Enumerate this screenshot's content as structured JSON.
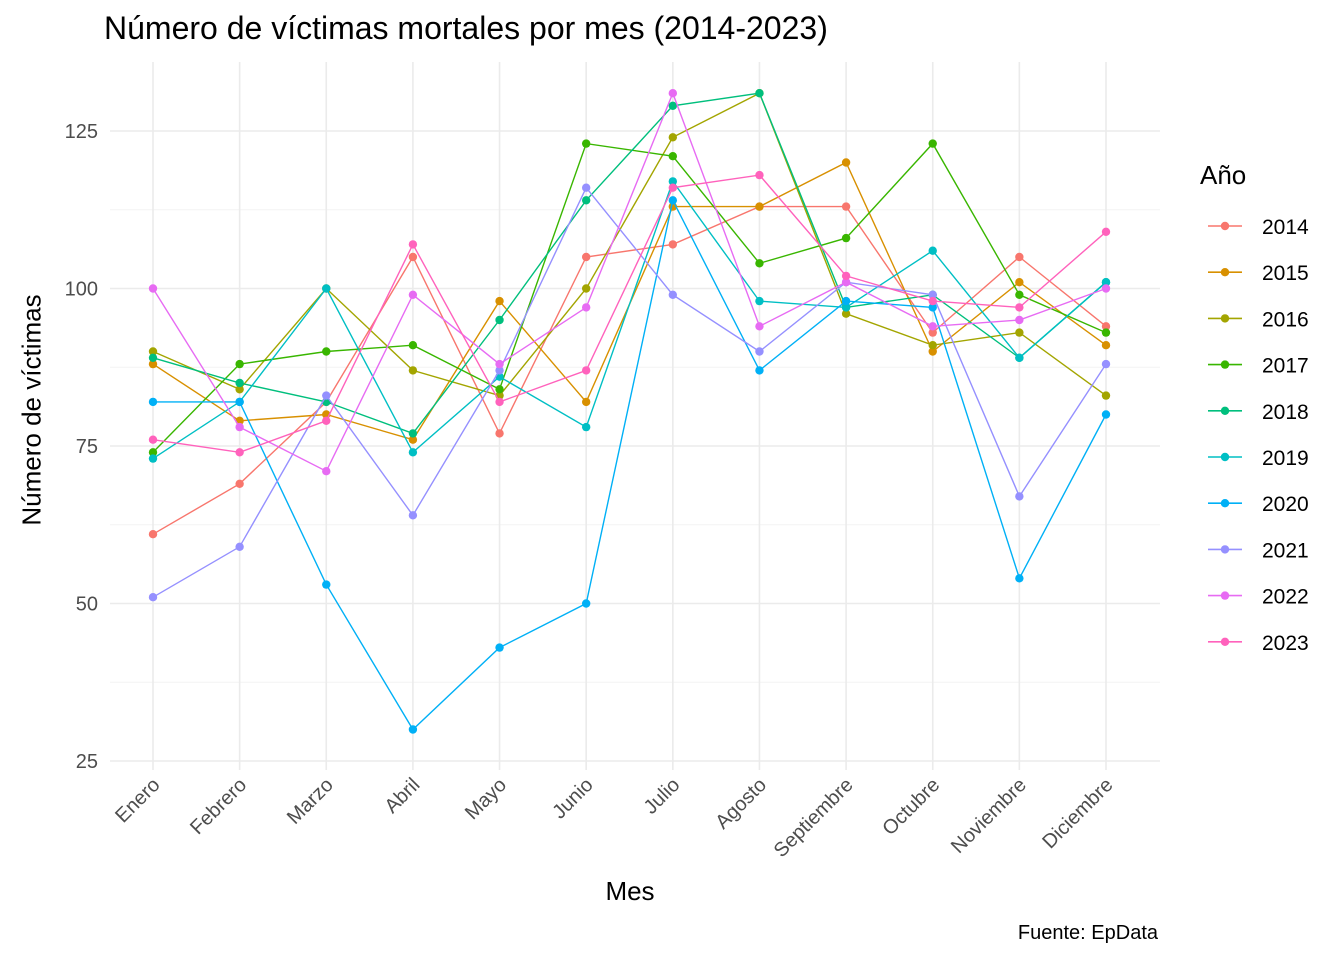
{
  "chart_data": {
    "type": "line",
    "title": "Número de víctimas mortales por mes (2014-2023)",
    "xlabel": "Mes",
    "ylabel": "Número de víctimas",
    "caption": "Fuente: EpData",
    "legend_title": "Año",
    "legend_position": "right",
    "grid": true,
    "ylim": [
      25,
      135
    ],
    "y_ticks": [
      25,
      50,
      75,
      100,
      125
    ],
    "categories": [
      "Enero",
      "Febrero",
      "Marzo",
      "Abril",
      "Mayo",
      "Junio",
      "Julio",
      "Agosto",
      "Septiembre",
      "Octubre",
      "Noviembre",
      "Diciembre"
    ],
    "series": [
      {
        "name": "2014",
        "color": "#F8766D",
        "values": [
          61,
          69,
          82,
          105,
          77,
          105,
          107,
          113,
          113,
          93,
          105,
          94
        ]
      },
      {
        "name": "2015",
        "color": "#D89000",
        "values": [
          88,
          79,
          80,
          76,
          98,
          82,
          113,
          113,
          120,
          90,
          101,
          91
        ]
      },
      {
        "name": "2016",
        "color": "#A3A500",
        "values": [
          90,
          84,
          100,
          87,
          83,
          100,
          124,
          131,
          96,
          91,
          93,
          83
        ]
      },
      {
        "name": "2017",
        "color": "#39B600",
        "values": [
          74,
          88,
          90,
          91,
          84,
          123,
          121,
          104,
          108,
          123,
          99,
          93
        ]
      },
      {
        "name": "2018",
        "color": "#00BF7D",
        "values": [
          89,
          85,
          82,
          77,
          95,
          114,
          129,
          131,
          97,
          99,
          89,
          101
        ]
      },
      {
        "name": "2019",
        "color": "#00BFC4",
        "values": [
          73,
          82,
          100,
          74,
          86,
          78,
          117,
          98,
          97,
          106,
          89,
          101
        ]
      },
      {
        "name": "2020",
        "color": "#00B0F6",
        "values": [
          82,
          82,
          53,
          30,
          43,
          50,
          114,
          87,
          98,
          97,
          54,
          80
        ]
      },
      {
        "name": "2021",
        "color": "#9590FF",
        "values": [
          51,
          59,
          83,
          64,
          87,
          116,
          99,
          90,
          101,
          99,
          67,
          88
        ]
      },
      {
        "name": "2022",
        "color": "#E76BF3",
        "values": [
          100,
          78,
          71,
          99,
          88,
          97,
          131,
          94,
          101,
          94,
          95,
          100
        ]
      },
      {
        "name": "2023",
        "color": "#FF62BC",
        "values": [
          76,
          74,
          79,
          107,
          82,
          87,
          116,
          118,
          102,
          98,
          97,
          109
        ]
      }
    ]
  }
}
